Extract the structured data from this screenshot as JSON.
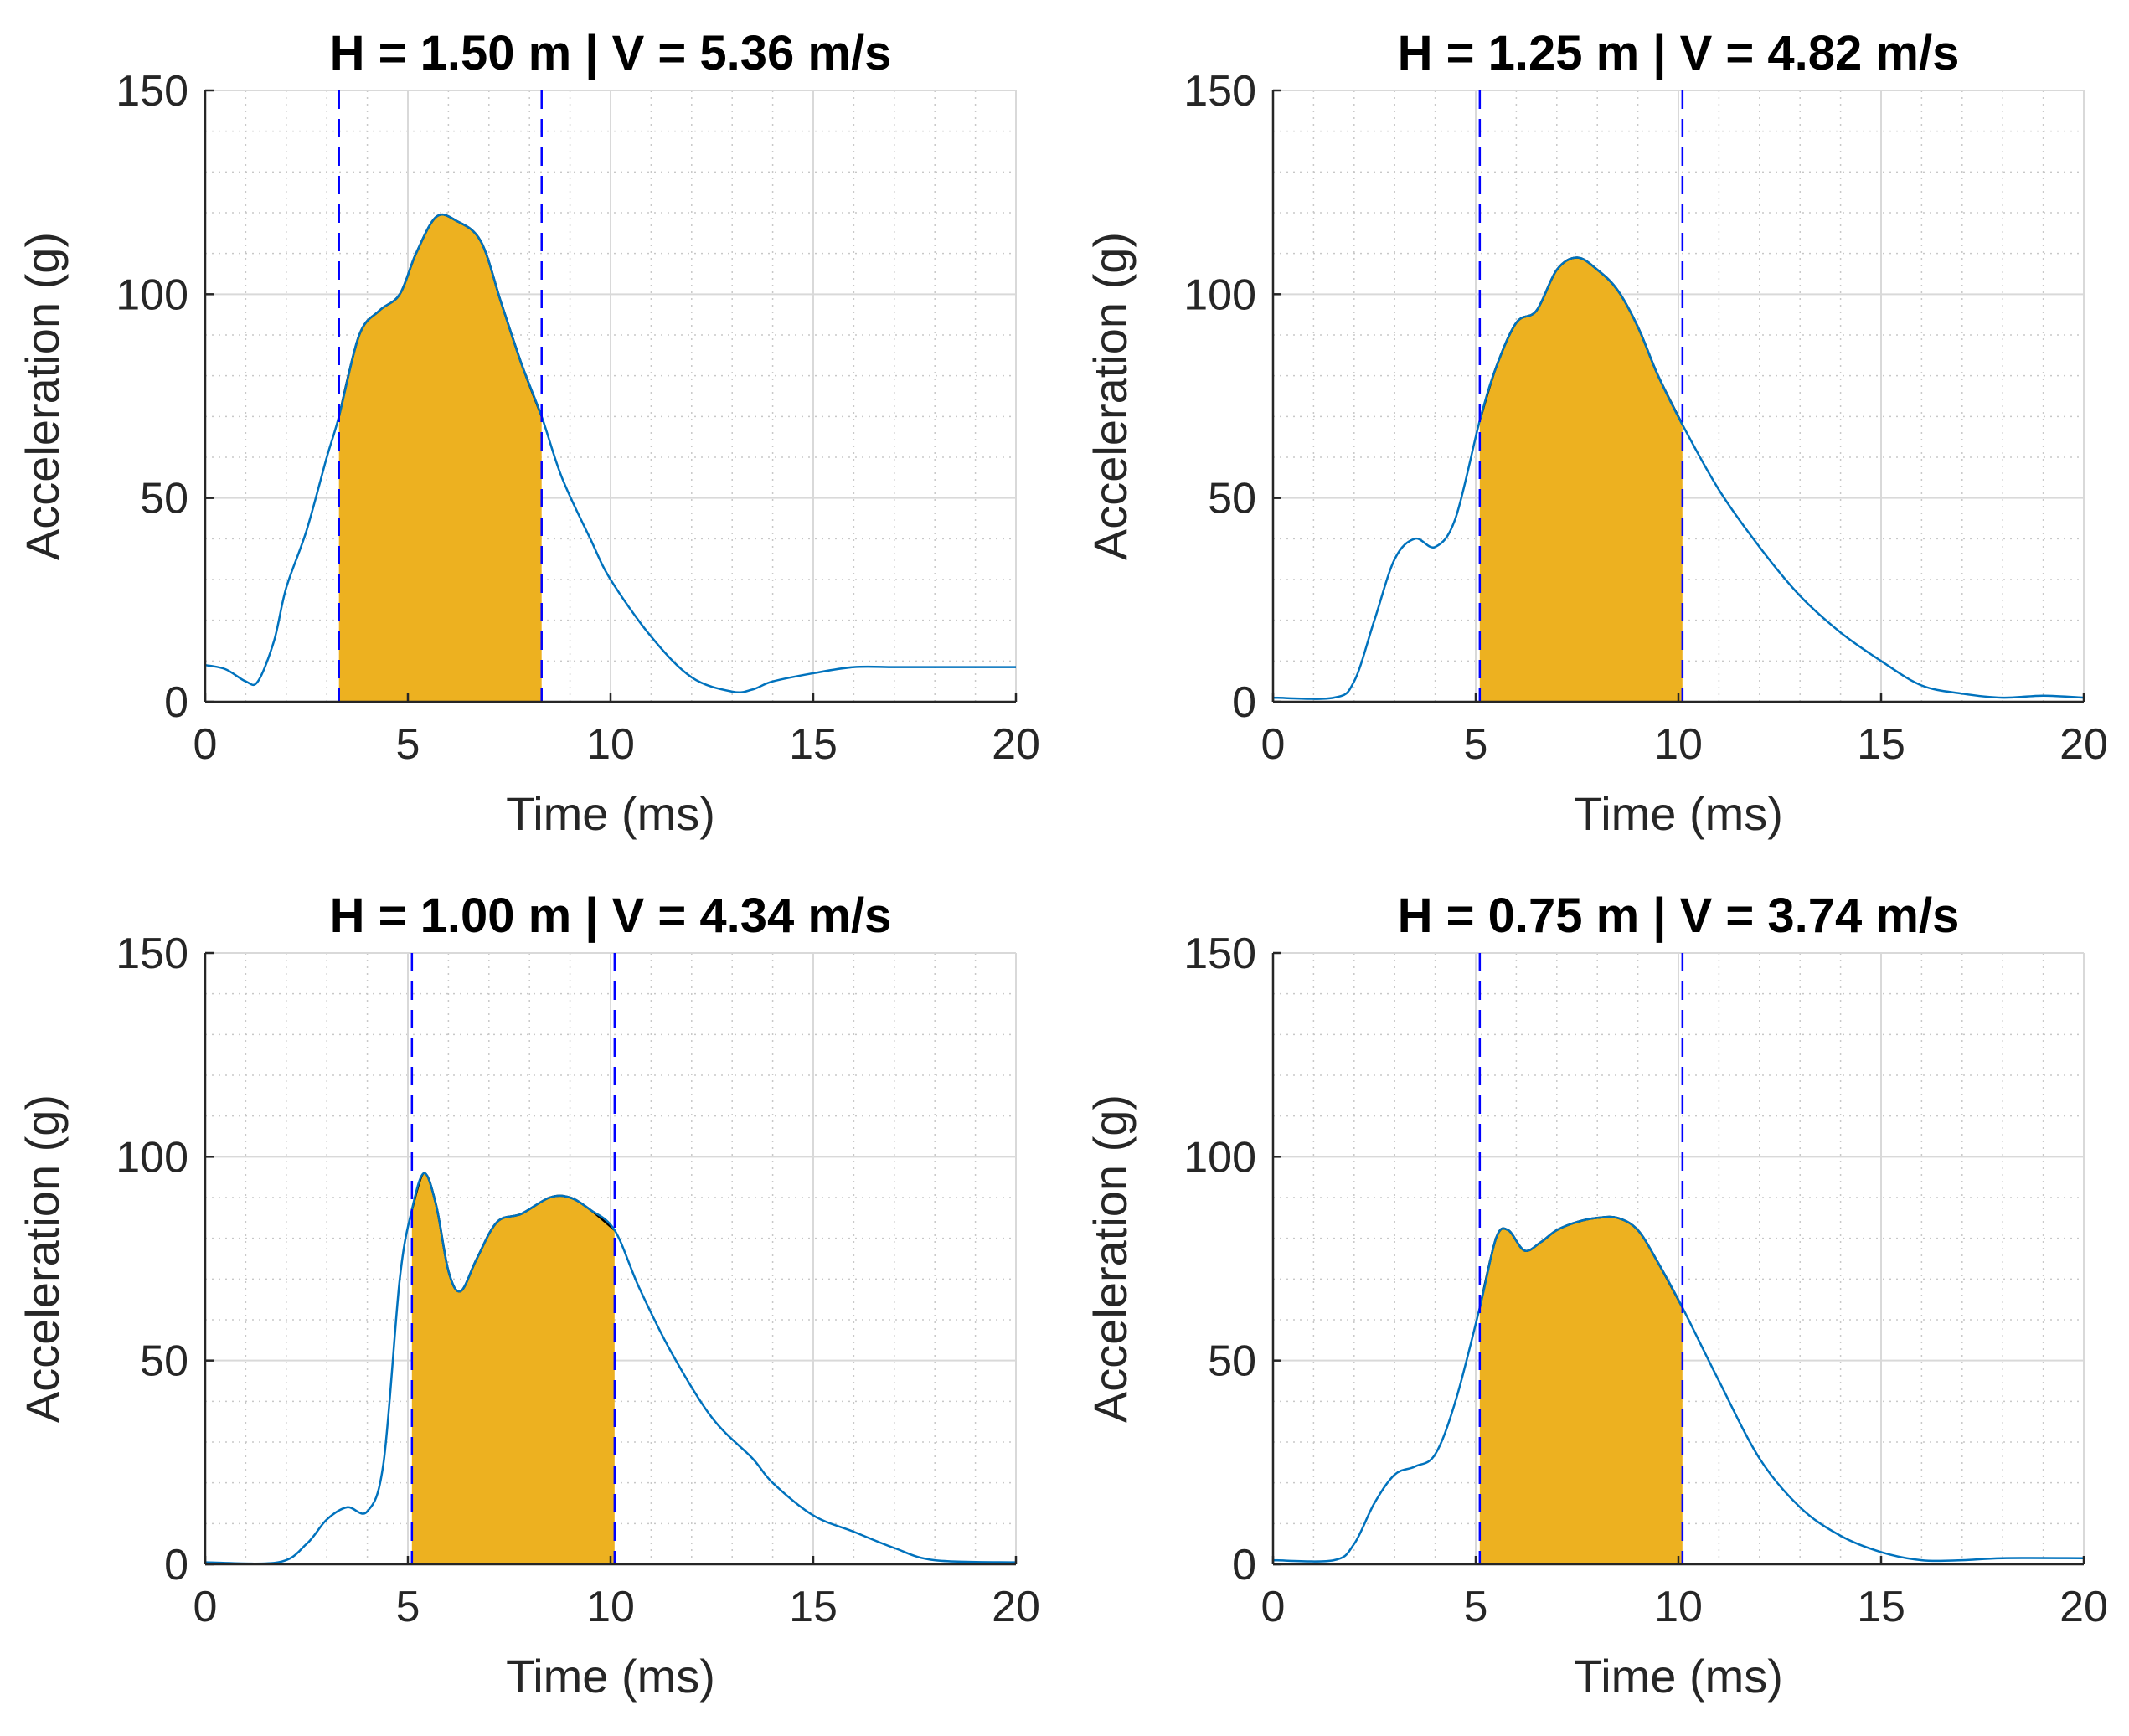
{
  "colors": {
    "signal": "#0072BD",
    "fill": "#EDB120",
    "marker": "#0000FF",
    "grid_major": "#D9D9D9",
    "grid_minor": "#C8C8C8",
    "axis": "#262626"
  },
  "chart_data": [
    {
      "type": "area",
      "title": "H = 1.50 m | V = 5.36 m/s",
      "xlabel": "Time (ms)",
      "ylabel": "Acceleration (g)",
      "xlim": [
        0,
        20
      ],
      "ylim": [
        0,
        150
      ],
      "xticks": [
        "0",
        "5",
        "10",
        "15",
        "20"
      ],
      "yticks": [
        "0",
        "50",
        "100",
        "150"
      ],
      "grid": "major and minor",
      "markers": [
        3.3,
        8.3
      ],
      "series": [
        {
          "name": "acceleration",
          "x": [
            0,
            0.5,
            1.0,
            1.3,
            1.7,
            2.0,
            2.5,
            3.0,
            3.3,
            3.8,
            4.3,
            4.8,
            5.2,
            5.7,
            6.2,
            6.8,
            7.3,
            7.8,
            8.3,
            8.8,
            9.5,
            10.0,
            11.0,
            12.0,
            13.0,
            13.5,
            14.0,
            15.0,
            16.0,
            17.0,
            18.0,
            19.0,
            20.0
          ],
          "y": [
            9,
            8,
            5,
            5,
            15,
            28,
            42,
            60,
            70,
            90,
            96,
            100,
            110,
            119,
            118,
            113,
            98,
            83,
            70,
            55,
            40,
            30,
            16,
            6,
            2.5,
            3,
            5,
            7,
            8.5,
            8.5,
            8.5,
            8.5,
            8.5
          ]
        }
      ]
    },
    {
      "type": "area",
      "title": "H = 1.25 m | V = 4.82 m/s",
      "xlabel": "Time (ms)",
      "ylabel": "Acceleration (g)",
      "xlim": [
        0,
        20
      ],
      "ylim": [
        0,
        150
      ],
      "xticks": [
        "0",
        "5",
        "10",
        "15",
        "20"
      ],
      "yticks": [
        "0",
        "50",
        "100",
        "150"
      ],
      "grid": "major and minor",
      "markers": [
        5.1,
        10.1
      ],
      "series": [
        {
          "name": "acceleration",
          "x": [
            0,
            1.5,
            2.0,
            2.5,
            3.0,
            3.5,
            4.0,
            4.5,
            5.1,
            5.5,
            6.0,
            6.5,
            7.0,
            7.5,
            8.0,
            8.5,
            9.0,
            9.5,
            10.1,
            11.0,
            12.0,
            13.0,
            14.0,
            15.0,
            16.0,
            17.0,
            18.0,
            19.0,
            20.0
          ],
          "y": [
            1,
            1,
            5,
            20,
            35,
            40,
            38,
            45,
            69,
            82,
            93,
            96,
            106,
            109,
            106,
            101,
            92,
            80,
            68,
            52,
            38,
            26,
            17,
            10,
            4,
            2,
            1,
            1.5,
            1
          ]
        }
      ]
    },
    {
      "type": "area",
      "title": "H = 1.00 m | V = 4.34 m/s",
      "xlabel": "Time (ms)",
      "ylabel": "Acceleration (g)",
      "xlim": [
        0,
        20
      ],
      "ylim": [
        0,
        150
      ],
      "xticks": [
        "0",
        "5",
        "10",
        "15",
        "20"
      ],
      "yticks": [
        "0",
        "50",
        "100",
        "150"
      ],
      "grid": "major and minor",
      "markers": [
        5.1,
        10.1
      ],
      "series": [
        {
          "name": "acceleration",
          "x": [
            0,
            1.8,
            2.5,
            3.0,
            3.5,
            4.0,
            4.4,
            4.8,
            5.1,
            5.4,
            5.7,
            6.0,
            6.3,
            6.7,
            7.2,
            7.8,
            8.5,
            9.0,
            9.5,
            10.1,
            10.7,
            11.5,
            12.5,
            13.5,
            14.0,
            15.0,
            16.0,
            17.0,
            18.0,
            20.0
          ],
          "y": [
            0.5,
            0.5,
            5,
            11,
            14,
            13,
            25,
            70,
            87,
            96,
            88,
            72,
            67,
            75,
            84,
            86,
            90,
            90,
            87,
            82,
            68,
            52,
            36,
            26,
            20,
            12,
            8,
            4,
            1,
            0.5
          ]
        }
      ]
    },
    {
      "type": "area",
      "title": "H = 0.75 m | V = 3.74 m/s",
      "xlabel": "Time (ms)",
      "ylabel": "Acceleration (g)",
      "xlim": [
        0,
        20
      ],
      "ylim": [
        0,
        150
      ],
      "xticks": [
        "0",
        "5",
        "10",
        "15",
        "20"
      ],
      "yticks": [
        "0",
        "50",
        "100",
        "150"
      ],
      "grid": "major and minor",
      "markers": [
        5.1,
        10.1
      ],
      "series": [
        {
          "name": "acceleration",
          "x": [
            0,
            1.5,
            2.0,
            2.5,
            3.0,
            3.5,
            4.0,
            4.5,
            5.1,
            5.5,
            5.8,
            6.2,
            6.6,
            7.0,
            7.5,
            8.0,
            8.5,
            9.0,
            9.5,
            10.1,
            11.0,
            12.0,
            13.0,
            14.0,
            15.0,
            16.0,
            17.0,
            18.0,
            20.0
          ],
          "y": [
            1,
            1,
            5,
            15,
            22,
            24,
            27,
            40,
            63,
            80,
            82,
            77,
            79,
            82,
            84,
            85,
            85,
            82,
            74,
            63,
            45,
            26,
            14,
            7,
            3,
            1,
            1,
            1.5,
            1.5
          ]
        }
      ]
    }
  ]
}
